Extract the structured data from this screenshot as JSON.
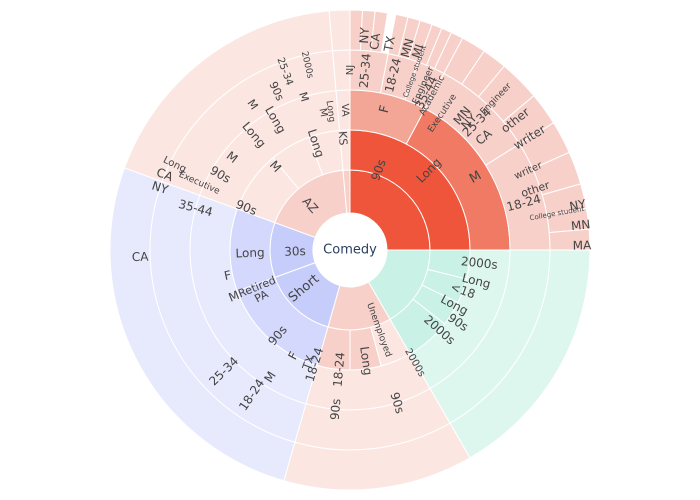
{
  "chart_data": {
    "type": "sunburst",
    "root": "Comedy",
    "colors": {
      "long_90s": "#ef553b",
      "long_90s_M": "#f07a63",
      "long_90s_F": "#f4a696",
      "long_90s_light": "#fbdcd6",
      "pink": "#f8d0ca",
      "pink_light": "#fce6e2",
      "blue": "#c7cdfb",
      "blue_mid": "#d4d8fc",
      "blue_light": "#e7e9fd",
      "green": "#c9f1e5",
      "green_light": "#ddf7ef"
    },
    "ring1": [
      {
        "label": "Long",
        "start": 0,
        "end": 90,
        "color": "long_90s",
        "sub": [
          {
            "label": "90s",
            "start": 0,
            "end": 90,
            "color": "long_90s",
            "sub": [
              {
                "label": "F",
                "start": 0,
                "end": 28,
                "color": "long_90s_F",
                "sub": [
                  {
                    "label": "25-34",
                    "start": 0,
                    "end": 11,
                    "color": "pink",
                    "sub": [
                      {
                        "label": "NJ",
                        "start": 0,
                        "end": 3
                      },
                      {
                        "label": "NY",
                        "start": 3,
                        "end": 6
                      },
                      {
                        "label": "CA",
                        "start": 6,
                        "end": 9
                      }
                    ]
                  },
                  {
                    "label": "18-24",
                    "start": 11,
                    "end": 20,
                    "color": "pink",
                    "sub": [
                      {
                        "label": "TX",
                        "start": 11,
                        "end": 14
                      },
                      {
                        "label": "MN",
                        "start": 14,
                        "end": 17
                      },
                      {
                        "label": "MI",
                        "start": 17,
                        "end": 20
                      }
                    ]
                  },
                  {
                    "label": "35-44",
                    "start": 20,
                    "end": 28,
                    "color": "pink",
                    "sub": [
                      {
                        "label": "College student",
                        "start": 20,
                        "end": 22.5
                      },
                      {
                        "label": "Engineer",
                        "start": 22.5,
                        "end": 25
                      },
                      {
                        "label": "Academic",
                        "start": 25,
                        "end": 28
                      }
                    ]
                  }
                ]
              },
              {
                "label": "M",
                "start": 28,
                "end": 90,
                "color": "long_90s_M",
                "sub": [
                  {
                    "label": "25-34",
                    "start": 28,
                    "end": 58,
                    "color": "pink",
                    "sub": [
                      {
                        "label": "Executive",
                        "start": 28,
                        "end": 34
                      },
                      {
                        "label": "NY",
                        "start": 34,
                        "end": 40
                      },
                      {
                        "label": "MN",
                        "start": 34,
                        "end": 40
                      },
                      {
                        "label": "CA",
                        "start": 40,
                        "end": 50
                      },
                      {
                        "label": "other",
                        "start": 50,
                        "end": 58
                      }
                    ]
                  },
                  {
                    "label": "18-24",
                    "start": 58,
                    "end": 90,
                    "color": "pink",
                    "sub": [
                      {
                        "label": "writer",
                        "start": 58,
                        "end": 66
                      },
                      {
                        "label": "other",
                        "start": 66,
                        "end": 74
                      },
                      {
                        "label": "NY",
                        "start": 74,
                        "end": 80
                      },
                      {
                        "label": "MN",
                        "start": 80,
                        "end": 85
                      },
                      {
                        "label": "MA",
                        "start": 85,
                        "end": 90
                      }
                    ]
                  }
                ]
              }
            ]
          }
        ]
      },
      {
        "label": "",
        "start": 90,
        "end": 150,
        "color": "green",
        "sub": [
          {
            "label": "2000s",
            "start": 90,
            "end": 104,
            "color": "green"
          },
          {
            "label": "<18",
            "start": 104,
            "end": 116,
            "color": "green"
          },
          {
            "label": "90s",
            "start": 116,
            "end": 128,
            "color": "green"
          },
          {
            "label": "2000s",
            "start": 128,
            "end": 150,
            "color": "green"
          }
        ]
      },
      {
        "label": "",
        "start": 150,
        "end": 196,
        "color": "pink",
        "sub": [
          {
            "label": "Unemployed",
            "start": 150,
            "end": 165,
            "color": "pink_light"
          },
          {
            "label": "Long",
            "start": 165,
            "end": 180,
            "color": "pink"
          },
          {
            "label": "18-24",
            "start": 180,
            "end": 196,
            "color": "pink"
          }
        ]
      },
      {
        "label": "Short",
        "start": 196,
        "end": 250,
        "color": "blue",
        "sub": [
          {
            "label": "90s",
            "start": 196,
            "end": 250,
            "color": "blue_mid"
          }
        ]
      },
      {
        "label": "30s",
        "start": 250,
        "end": 290,
        "color": "blue",
        "sub": [
          {
            "label": "Long",
            "start": 250,
            "end": 290,
            "color": "blue_mid"
          }
        ]
      },
      {
        "label": "AZ",
        "start": 290,
        "end": 355,
        "color": "pink",
        "sub": [
          {
            "label": "90s",
            "start": 290,
            "end": 320,
            "color": "pink_light"
          },
          {
            "label": "M",
            "start": 320,
            "end": 340,
            "color": "pink_light"
          },
          {
            "label": "Long",
            "start": 340,
            "end": 355,
            "color": "pink_light"
          }
        ]
      },
      {
        "label": "",
        "start": 355,
        "end": 360,
        "color": "pink",
        "sub": [
          {
            "label": "KS",
            "start": 355,
            "end": 360,
            "color": "pink_light"
          }
        ]
      }
    ],
    "text_labels": [
      {
        "t": "Comedy",
        "a": 0,
        "r": 0,
        "s": 13,
        "center": true
      },
      {
        "t": "90s",
        "a": 20,
        "r": 85,
        "s": 12
      },
      {
        "t": "Long",
        "a": 45,
        "r": 112,
        "s": 12
      },
      {
        "t": "F",
        "a": 14,
        "r": 145,
        "s": 13
      },
      {
        "t": "M",
        "a": 60,
        "r": 145,
        "s": 13
      },
      {
        "t": "25-34",
        "a": 5,
        "r": 180,
        "s": 12
      },
      {
        "t": "18-24",
        "a": 14,
        "r": 180,
        "s": 12
      },
      {
        "t": "35-44",
        "a": 26,
        "r": 175,
        "s": 12
      },
      {
        "t": "25-34",
        "a": 45,
        "r": 180,
        "s": 12
      },
      {
        "t": "18-24",
        "a": 75,
        "r": 180,
        "s": 12
      },
      {
        "t": "30s",
        "a": 268,
        "r": 55,
        "s": 12
      },
      {
        "t": "Short",
        "a": 230,
        "r": 60,
        "s": 13
      },
      {
        "t": "AZ",
        "a": 318,
        "r": 60,
        "s": 12
      },
      {
        "t": "90s",
        "a": 292,
        "r": 112,
        "s": 12
      },
      {
        "t": "M",
        "a": 318,
        "r": 112,
        "s": 12
      },
      {
        "t": "Long",
        "a": 342,
        "r": 112,
        "s": 12
      },
      {
        "t": "Long",
        "a": 268,
        "r": 100,
        "s": 12
      },
      {
        "t": "M",
        "a": 248,
        "r": 125,
        "s": 12
      },
      {
        "t": "F",
        "a": 258,
        "r": 125,
        "s": 12
      },
      {
        "t": "90s",
        "a": 220,
        "r": 112,
        "s": 12
      },
      {
        "t": "Retired",
        "a": 248,
        "r": 100,
        "s": 11
      },
      {
        "t": "PA",
        "a": 242,
        "r": 100,
        "s": 11
      },
      {
        "t": "2000s",
        "a": 96,
        "r": 130,
        "s": 12
      },
      {
        "t": "Long",
        "a": 104,
        "r": 130,
        "s": 12
      },
      {
        "t": "<18",
        "a": 110,
        "r": 120,
        "s": 12
      },
      {
        "t": "Long",
        "a": 118,
        "r": 118,
        "s": 12
      },
      {
        "t": "90s",
        "a": 124,
        "r": 130,
        "s": 12
      },
      {
        "t": "2000s",
        "a": 132,
        "r": 120,
        "s": 12
      },
      {
        "t": "Unemployed",
        "a": 160,
        "r": 85,
        "s": 9
      },
      {
        "t": "Long",
        "a": 172,
        "r": 112,
        "s": 12
      },
      {
        "t": "18-24",
        "a": 185,
        "r": 120,
        "s": 12
      },
      {
        "t": "2000s",
        "a": 150,
        "r": 130,
        "s": 10
      },
      {
        "t": "18-24",
        "a": 197,
        "r": 120,
        "s": 12
      },
      {
        "t": "90s",
        "a": 185,
        "r": 160,
        "s": 12
      },
      {
        "t": "90s",
        "a": 163,
        "r": 160,
        "s": 12
      },
      {
        "t": "M",
        "a": 212,
        "r": 150,
        "s": 12
      },
      {
        "t": "F",
        "a": 208,
        "r": 120,
        "s": 12
      },
      {
        "t": "TX",
        "a": 200,
        "r": 120,
        "s": 11
      },
      {
        "t": "25-34",
        "a": 226,
        "r": 175,
        "s": 12
      },
      {
        "t": "18-24",
        "a": 214,
        "r": 175,
        "s": 12
      },
      {
        "t": "35-44",
        "a": 285,
        "r": 160,
        "s": 12
      },
      {
        "t": "90s",
        "a": 300,
        "r": 150,
        "s": 12
      },
      {
        "t": "Long",
        "a": 320,
        "r": 150,
        "s": 12
      },
      {
        "t": "M",
        "a": 308,
        "r": 150,
        "s": 12
      },
      {
        "t": "Long",
        "a": 296,
        "r": 195,
        "s": 10
      },
      {
        "t": "M",
        "a": 326,
        "r": 175,
        "s": 11
      },
      {
        "t": "Long",
        "a": 330,
        "r": 150,
        "s": 12
      },
      {
        "t": "90s",
        "a": 335,
        "r": 175,
        "s": 11
      },
      {
        "t": "25-34",
        "a": 340,
        "r": 190,
        "s": 10
      },
      {
        "t": "M",
        "a": 343,
        "r": 160,
        "s": 11
      },
      {
        "t": "2000s",
        "a": 347,
        "r": 190,
        "s": 9
      },
      {
        "t": "KS",
        "a": 356,
        "r": 112,
        "s": 11
      },
      {
        "t": "VA",
        "a": 358,
        "r": 140,
        "s": 10
      },
      {
        "t": "Long",
        "a": 352,
        "r": 140,
        "s": 9
      },
      {
        "t": "M",
        "a": 349,
        "r": 140,
        "s": 10
      },
      {
        "t": "Executive",
        "a": 294,
        "r": 165,
        "s": 9
      },
      {
        "t": "CA",
        "a": 292,
        "r": 200,
        "s": 12
      },
      {
        "t": "NY",
        "a": 288,
        "r": 200,
        "s": 12
      },
      {
        "t": "CA",
        "a": 268,
        "r": 210,
        "s": 12
      },
      {
        "t": "Engineer",
        "a": 44,
        "r": 210,
        "s": 9
      },
      {
        "t": "other",
        "a": 52,
        "r": 210,
        "s": 12
      },
      {
        "t": "writer",
        "a": 58,
        "r": 212,
        "s": 12
      },
      {
        "t": "writer",
        "a": 66,
        "r": 195,
        "s": 10
      },
      {
        "t": "other",
        "a": 72,
        "r": 195,
        "s": 11
      },
      {
        "t": "College student",
        "a": 80,
        "r": 210,
        "s": 7
      },
      {
        "t": "NY",
        "a": 79,
        "r": 232,
        "s": 12
      },
      {
        "t": "MN",
        "a": 84,
        "r": 232,
        "s": 12
      },
      {
        "t": "MA",
        "a": 89,
        "r": 232,
        "s": 12
      },
      {
        "t": "MN",
        "a": 40,
        "r": 175,
        "s": 12
      },
      {
        "t": "NY",
        "a": 43,
        "r": 175,
        "s": 12
      },
      {
        "t": "CA",
        "a": 50,
        "r": 175,
        "s": 12
      },
      {
        "t": "Executive",
        "a": 34,
        "r": 165,
        "s": 9
      },
      {
        "t": "Academic",
        "a": 28,
        "r": 175,
        "s": 9
      },
      {
        "t": "Engineer",
        "a": 24,
        "r": 180,
        "s": 9
      },
      {
        "t": "College student",
        "a": 20,
        "r": 190,
        "s": 7
      },
      {
        "t": "MN",
        "a": 16,
        "r": 210,
        "s": 12
      },
      {
        "t": "MI",
        "a": 19,
        "r": 210,
        "s": 12
      },
      {
        "t": "TX",
        "a": 11,
        "r": 210,
        "s": 12
      },
      {
        "t": "CA",
        "a": 7,
        "r": 210,
        "s": 12
      },
      {
        "t": "NY",
        "a": 4,
        "r": 215,
        "s": 12
      },
      {
        "t": "NJ",
        "a": 0,
        "r": 180,
        "s": 10
      }
    ]
  }
}
